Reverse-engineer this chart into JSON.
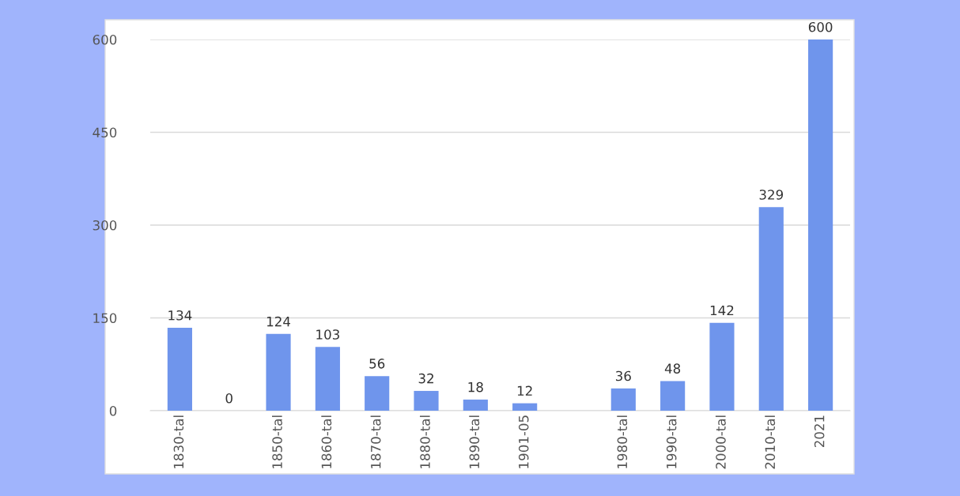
{
  "chart_data": {
    "type": "bar",
    "categories": [
      "1830-tal",
      null,
      "1850-tal",
      "1860-tal",
      "1870-tal",
      "1880-tal",
      "1890-tal",
      "1901-05",
      null,
      "1980-tal",
      "1990-tal",
      "2000-tal",
      "2010-tal",
      "2021"
    ],
    "values": [
      134,
      0,
      124,
      103,
      56,
      32,
      18,
      12,
      null,
      36,
      48,
      142,
      329,
      600
    ],
    "color": "#6f95ec",
    "ylim": [
      0,
      600
    ],
    "yticks": [
      0,
      150,
      300,
      450,
      600
    ],
    "grid": "y",
    "data_labels": true
  }
}
